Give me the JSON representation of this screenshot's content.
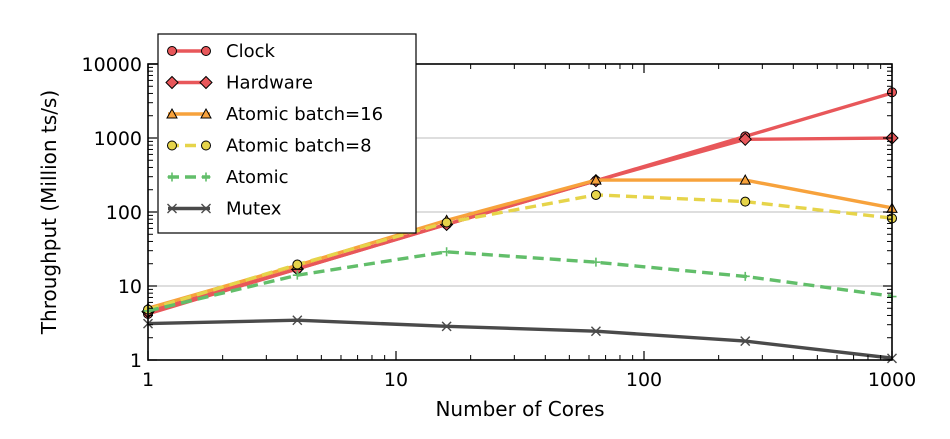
{
  "chart_data": {
    "type": "line",
    "xscale": "log",
    "yscale": "log",
    "xlim": [
      1,
      1000
    ],
    "ylim": [
      1,
      10000
    ],
    "xlabel": "Number of Cores",
    "ylabel": "Throughput (Million ts/s)",
    "x_ticks": [
      "1",
      "10",
      "100",
      "1000"
    ],
    "y_ticks": [
      "1",
      "10",
      "100",
      "1000",
      "10000"
    ],
    "grid": "horizontal",
    "legend_position": "top-left",
    "x": [
      1,
      4,
      16,
      64,
      256,
      1024
    ],
    "series": [
      {
        "name": "Clock",
        "color": "#e8575a",
        "marker": "circle",
        "linestyle": "solid",
        "values": [
          4.2,
          17,
          68,
          265,
          1050,
          4150
        ]
      },
      {
        "name": "Hardware",
        "color": "#e8575a",
        "marker": "diamond",
        "linestyle": "solid",
        "values": [
          4.5,
          17,
          68,
          265,
          960,
          1000
        ]
      },
      {
        "name": "Atomic batch=16",
        "color": "#f7a23c",
        "marker": "triangle",
        "linestyle": "solid",
        "values": [
          5,
          19,
          77,
          270,
          270,
          112
        ]
      },
      {
        "name": "Atomic batch=8",
        "color": "#e6d44a",
        "marker": "circle",
        "linestyle": "dashed",
        "values": [
          4.8,
          19.5,
          72,
          170,
          138,
          82
        ]
      },
      {
        "name": "Atomic",
        "color": "#62be6a",
        "marker": "plus",
        "linestyle": "dashed",
        "values": [
          4.6,
          14,
          29,
          21,
          13.5,
          7.2
        ]
      },
      {
        "name": "Mutex",
        "color": "#4a4a4a",
        "marker": "x",
        "linestyle": "solid",
        "values": [
          3.1,
          3.45,
          2.85,
          2.45,
          1.8,
          1.05
        ]
      }
    ]
  }
}
